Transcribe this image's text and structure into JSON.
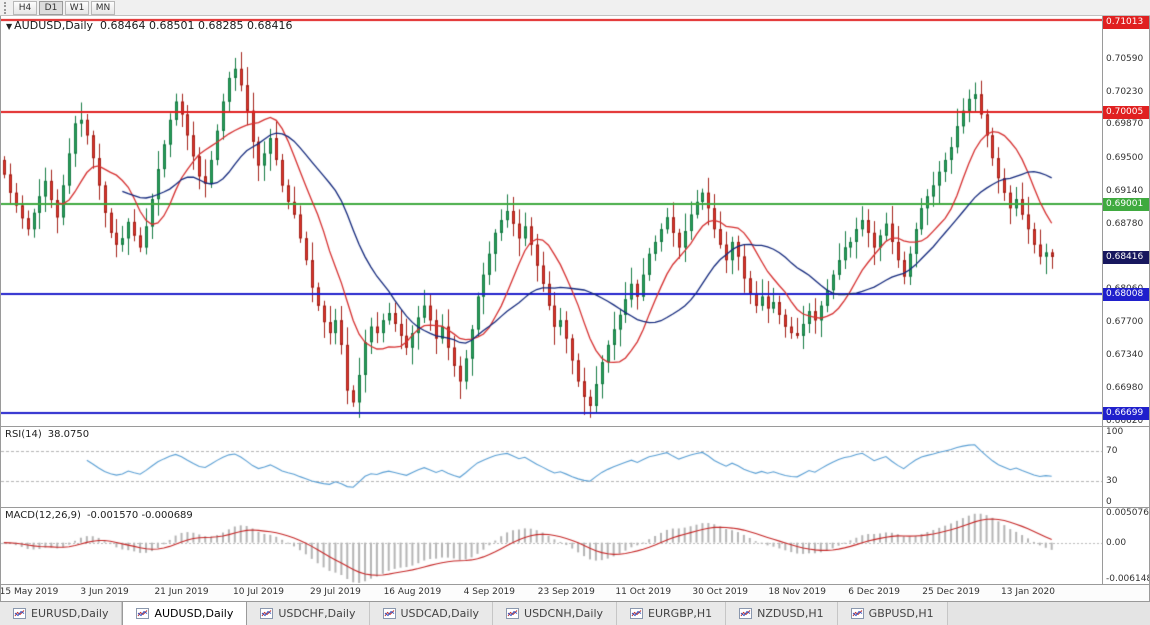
{
  "toolbar": {
    "buttons": [
      "H4",
      "D1",
      "W1",
      "MN"
    ],
    "active": "D1"
  },
  "chart": {
    "title_symbol": "AUDUSD,Daily",
    "title_ohlc": "0.68464 0.68501 0.68285 0.68416",
    "dropdown_glyph": "▼"
  },
  "indicators": {
    "rsi": {
      "label": "RSI(14)",
      "value": "38.0750"
    },
    "macd": {
      "label": "MACD(12,26,9)",
      "value": "-0.001570 -0.000689"
    }
  },
  "tabs": [
    {
      "label": "EURUSD,Daily",
      "active": false
    },
    {
      "label": "AUDUSD,Daily",
      "active": true
    },
    {
      "label": "USDCHF,Daily",
      "active": false
    },
    {
      "label": "USDCAD,Daily",
      "active": false
    },
    {
      "label": "USDCNH,Daily",
      "active": false
    },
    {
      "label": "EURGBP,H1",
      "active": false
    },
    {
      "label": "NZDUSD,H1",
      "active": false
    },
    {
      "label": "GBPUSD,H1",
      "active": false
    }
  ],
  "chart_data": {
    "type": "candlestick",
    "symbol": "AUDUSD",
    "timeframe": "Daily",
    "price_range": [
      0.6656,
      0.7106
    ],
    "right_margin_candles": 8,
    "y_ticks": [
      "0.70950",
      "0.70590",
      "0.70230",
      "0.69870",
      "0.69500",
      "0.69140",
      "0.68780",
      "0.68420",
      "0.68060",
      "0.67700",
      "0.67340",
      "0.66980",
      "0.66620"
    ],
    "x_labels": [
      "15 May 2019",
      "3 Jun 2019",
      "21 Jun 2019",
      "10 Jul 2019",
      "29 Jul 2019",
      "16 Aug 2019",
      "4 Sep 2019",
      "23 Sep 2019",
      "11 Oct 2019",
      "30 Oct 2019",
      "18 Nov 2019",
      "6 Dec 2019",
      "25 Dec 2019",
      "13 Jan 2020"
    ],
    "x_label_day_offset": 4,
    "x_label_day_step": 13,
    "first_candle_open": 0.6948,
    "closes": [
      0.6932,
      0.6912,
      0.6898,
      0.6884,
      0.6872,
      0.689,
      0.6908,
      0.6925,
      0.6904,
      0.6885,
      0.692,
      0.6955,
      0.6988,
      0.6992,
      0.6975,
      0.695,
      0.692,
      0.689,
      0.6868,
      0.6855,
      0.6862,
      0.688,
      0.6865,
      0.6852,
      0.6875,
      0.6905,
      0.6938,
      0.6965,
      0.6992,
      0.7012,
      0.6998,
      0.6975,
      0.6952,
      0.693,
      0.6922,
      0.6948,
      0.698,
      0.7012,
      0.7038,
      0.7048,
      0.703,
      0.7002,
      0.6968,
      0.6942,
      0.6955,
      0.6972,
      0.6948,
      0.692,
      0.6902,
      0.6888,
      0.6862,
      0.6838,
      0.6808,
      0.6788,
      0.677,
      0.6758,
      0.6772,
      0.6745,
      0.6695,
      0.6682,
      0.6712,
      0.6748,
      0.6765,
      0.6758,
      0.6772,
      0.678,
      0.6768,
      0.6755,
      0.6742,
      0.6758,
      0.6775,
      0.6788,
      0.6772,
      0.6752,
      0.6765,
      0.6742,
      0.6722,
      0.6705,
      0.673,
      0.6762,
      0.6798,
      0.6822,
      0.6845,
      0.6868,
      0.6882,
      0.6892,
      0.6878,
      0.6862,
      0.6875,
      0.6855,
      0.6832,
      0.6812,
      0.6788,
      0.6765,
      0.6772,
      0.6752,
      0.6728,
      0.6705,
      0.6688,
      0.6678,
      0.6702,
      0.6726,
      0.6745,
      0.6762,
      0.6778,
      0.6795,
      0.6812,
      0.6798,
      0.6822,
      0.6845,
      0.6858,
      0.6872,
      0.6885,
      0.6868,
      0.6852,
      0.687,
      0.6888,
      0.6902,
      0.6912,
      0.6895,
      0.6872,
      0.6855,
      0.6838,
      0.6858,
      0.6842,
      0.6818,
      0.6802,
      0.6788,
      0.6798,
      0.6785,
      0.6792,
      0.6778,
      0.6765,
      0.6758,
      0.6755,
      0.6768,
      0.6782,
      0.6772,
      0.6788,
      0.6805,
      0.6822,
      0.6838,
      0.6852,
      0.6858,
      0.6872,
      0.6882,
      0.6868,
      0.6852,
      0.6865,
      0.6878,
      0.6858,
      0.6838,
      0.682,
      0.6845,
      0.6872,
      0.6895,
      0.6908,
      0.692,
      0.6935,
      0.6948,
      0.6962,
      0.6985,
      0.7002,
      0.7015,
      0.702,
      0.6998,
      0.6975,
      0.695,
      0.6928,
      0.6912,
      0.6895,
      0.6905,
      0.6888,
      0.6872,
      0.6855,
      0.6842,
      0.68464,
      0.68416
    ],
    "last_candle": {
      "open": 0.68464,
      "high": 0.68501,
      "low": 0.68285,
      "close": 0.68416
    },
    "wick_overrides": {
      "highs": {
        "39": 0.706,
        "164": 0.7033
      },
      "lows": {
        "59": 0.6677,
        "99": 0.6665,
        "134": 0.6752
      }
    },
    "moving_averages": [
      {
        "period": 10,
        "color": "#d63030"
      },
      {
        "period": 21,
        "color": "#14297d"
      }
    ],
    "hlines": [
      {
        "price": 0.71013,
        "label": "0.71013",
        "color": "#e02020"
      },
      {
        "price": 0.70005,
        "label": "0.70005",
        "color": "#e02020"
      },
      {
        "price": 0.69001,
        "label": "0.69001",
        "color": "#3faa3f"
      },
      {
        "price": 0.68008,
        "label": "0.68008",
        "color": "#2020cc"
      },
      {
        "price": 0.66699,
        "label": "0.66699",
        "color": "#2020cc"
      }
    ],
    "current_price": {
      "price": 0.68416,
      "label": "0.68416",
      "badge_color": "#17175e"
    },
    "candle_colors": {
      "up": "#2aa05c",
      "up_border": "#177d45",
      "down": "#e0362b",
      "down_border": "#a5231b"
    },
    "rsi": {
      "period": 14,
      "range": [
        0,
        100
      ],
      "levels": [
        70,
        30
      ],
      "ticks": [
        "100",
        "70",
        "30",
        "0"
      ],
      "color": "#5a9fd4",
      "current": 38.075
    },
    "macd": {
      "fast": 12,
      "slow": 26,
      "signal": 9,
      "range": [
        -0.006148,
        0.005076
      ],
      "ticks": [
        "0.005076",
        "0.00",
        "-0.006148"
      ],
      "hist_color": "#b5b5b5",
      "signal_color": "#c62828",
      "current_main": -0.00157,
      "current_signal": -0.000689
    }
  }
}
